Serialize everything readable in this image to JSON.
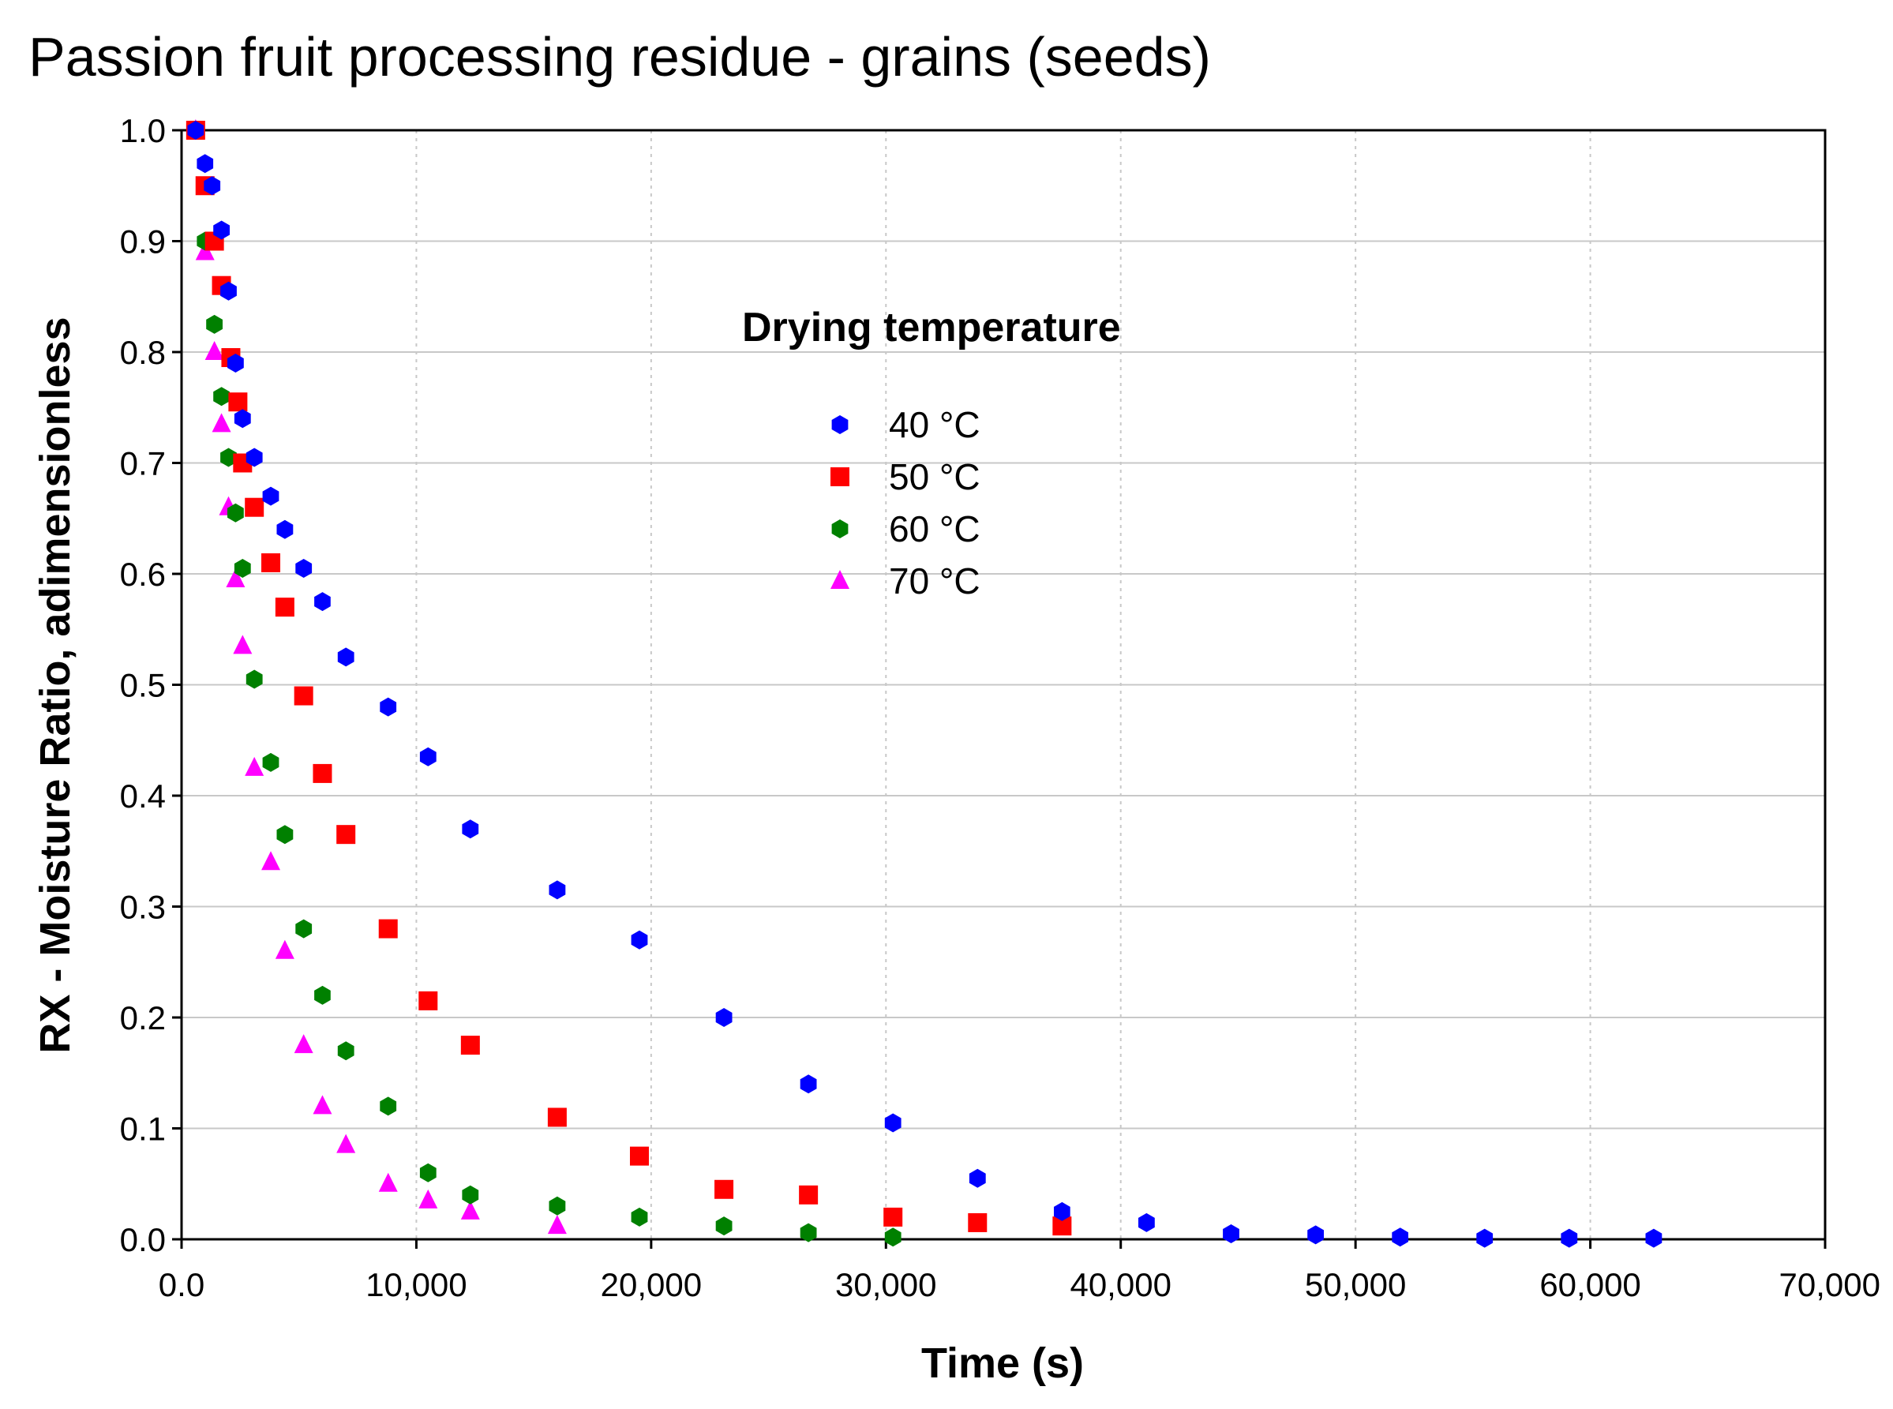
{
  "chart_data": {
    "type": "scatter",
    "title": "Passion fruit processing residue - grains (seeds)",
    "xlabel": "Time (s)",
    "ylabel": "RX - Moisture Ratio, adimensionless",
    "xlim": [
      0,
      70000
    ],
    "ylim": [
      0,
      1.0
    ],
    "x_ticks": [
      0,
      10000,
      20000,
      30000,
      40000,
      50000,
      60000,
      70000
    ],
    "x_tick_labels": [
      "0.0",
      "10,000",
      "20,000",
      "30,000",
      "40,000",
      "50,000",
      "60,000",
      "70,000"
    ],
    "y_ticks": [
      0,
      0.1,
      0.2,
      0.3,
      0.4,
      0.5,
      0.6,
      0.7,
      0.8,
      0.9,
      1.0
    ],
    "y_tick_labels": [
      "0.0",
      "0.1",
      "0.2",
      "0.3",
      "0.4",
      "0.5",
      "0.6",
      "0.7",
      "0.8",
      "0.9",
      "1.0"
    ],
    "grid": true,
    "legend": {
      "title": "Drying temperature",
      "position": "upper-center"
    },
    "series": [
      {
        "name": "40 °C",
        "color": "#0000ff",
        "marker": "hexagon",
        "points": [
          [
            600,
            1.0
          ],
          [
            1000,
            0.97
          ],
          [
            1300,
            0.95
          ],
          [
            1700,
            0.91
          ],
          [
            2000,
            0.855
          ],
          [
            2300,
            0.79
          ],
          [
            2600,
            0.74
          ],
          [
            3100,
            0.705
          ],
          [
            3800,
            0.67
          ],
          [
            4400,
            0.64
          ],
          [
            5200,
            0.605
          ],
          [
            6000,
            0.575
          ],
          [
            7000,
            0.525
          ],
          [
            8800,
            0.48
          ],
          [
            10500,
            0.435
          ],
          [
            12300,
            0.37
          ],
          [
            16000,
            0.315
          ],
          [
            19500,
            0.27
          ],
          [
            23100,
            0.2
          ],
          [
            26700,
            0.14
          ],
          [
            30300,
            0.105
          ],
          [
            33900,
            0.055
          ],
          [
            37500,
            0.025
          ],
          [
            41100,
            0.015
          ],
          [
            44700,
            0.005
          ],
          [
            48300,
            0.004
          ],
          [
            51900,
            0.002
          ],
          [
            55500,
            0.001
          ],
          [
            59100,
            0.001
          ],
          [
            62700,
            0.001
          ]
        ]
      },
      {
        "name": "50 °C",
        "color": "#ff0000",
        "marker": "square",
        "points": [
          [
            600,
            1.0
          ],
          [
            1000,
            0.95
          ],
          [
            1400,
            0.9
          ],
          [
            1700,
            0.86
          ],
          [
            2100,
            0.795
          ],
          [
            2400,
            0.755
          ],
          [
            2600,
            0.7
          ],
          [
            3100,
            0.66
          ],
          [
            3800,
            0.61
          ],
          [
            4400,
            0.57
          ],
          [
            5200,
            0.49
          ],
          [
            6000,
            0.42
          ],
          [
            7000,
            0.365
          ],
          [
            8800,
            0.28
          ],
          [
            10500,
            0.215
          ],
          [
            12300,
            0.175
          ],
          [
            16000,
            0.11
          ],
          [
            19500,
            0.075
          ],
          [
            23100,
            0.045
          ],
          [
            26700,
            0.04
          ],
          [
            30300,
            0.02
          ],
          [
            33900,
            0.015
          ],
          [
            37500,
            0.012
          ]
        ]
      },
      {
        "name": "60 °C",
        "color": "#008000",
        "marker": "hexagon",
        "points": [
          [
            600,
            1.0
          ],
          [
            1000,
            0.9
          ],
          [
            1400,
            0.825
          ],
          [
            1700,
            0.76
          ],
          [
            2000,
            0.705
          ],
          [
            2300,
            0.655
          ],
          [
            2600,
            0.605
          ],
          [
            3100,
            0.505
          ],
          [
            3800,
            0.43
          ],
          [
            4400,
            0.365
          ],
          [
            5200,
            0.28
          ],
          [
            6000,
            0.22
          ],
          [
            7000,
            0.17
          ],
          [
            8800,
            0.12
          ],
          [
            10500,
            0.06
          ],
          [
            12300,
            0.04
          ],
          [
            16000,
            0.03
          ],
          [
            19500,
            0.02
          ],
          [
            23100,
            0.012
          ],
          [
            26700,
            0.006
          ],
          [
            30300,
            0.002
          ]
        ]
      },
      {
        "name": "70 °C",
        "color": "#ff00ff",
        "marker": "triangle",
        "points": [
          [
            600,
            1.0
          ],
          [
            1000,
            0.89
          ],
          [
            1400,
            0.8
          ],
          [
            1700,
            0.735
          ],
          [
            2000,
            0.66
          ],
          [
            2300,
            0.595
          ],
          [
            2600,
            0.535
          ],
          [
            3100,
            0.425
          ],
          [
            3800,
            0.34
          ],
          [
            4400,
            0.26
          ],
          [
            5200,
            0.175
          ],
          [
            6000,
            0.12
          ],
          [
            7000,
            0.085
          ],
          [
            8800,
            0.05
          ],
          [
            10500,
            0.035
          ],
          [
            12300,
            0.025
          ],
          [
            16000,
            0.012
          ]
        ]
      }
    ]
  }
}
